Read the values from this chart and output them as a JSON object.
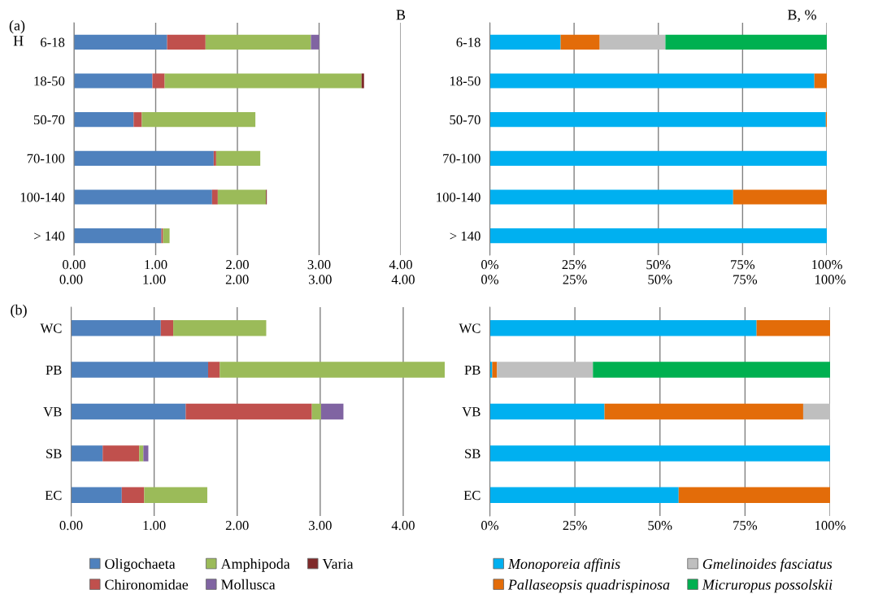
{
  "chart_data": [
    {
      "type": "bar",
      "orientation": "horizontal",
      "stacked": true,
      "title": "(a)",
      "ylabel": "H",
      "xlabel": "B",
      "categories": [
        "6-18",
        "18-50",
        "50-70",
        "70-100",
        "100-140",
        "> 140"
      ],
      "series": [
        {
          "color": "#4f81bd",
          "values": [
            1.14,
            0.96,
            0.73,
            1.71,
            1.69,
            1.07
          ]
        },
        {
          "color": "#c0504d",
          "values": [
            0.47,
            0.15,
            0.1,
            0.03,
            0.07,
            0.02
          ]
        },
        {
          "color": "#9bbb59",
          "values": [
            1.29,
            2.41,
            1.39,
            0.54,
            0.59,
            0.08
          ]
        },
        {
          "color": "#8064a2",
          "values": [
            0.1,
            0,
            0,
            0,
            0,
            0
          ]
        },
        {
          "color": "#7f2a2a",
          "values": [
            0,
            0.03,
            0,
            0,
            0.01,
            0
          ]
        }
      ],
      "xlim": [
        0,
        4
      ],
      "xticks": [
        {
          "value": 0,
          "label": "0.00"
        },
        {
          "value": 1,
          "label": "1.00"
        },
        {
          "value": 2,
          "label": "2.00"
        },
        {
          "value": 3,
          "label": "3.00"
        },
        {
          "value": 4,
          "label": "4.00"
        }
      ],
      "grid": "x"
    },
    {
      "type": "bar",
      "orientation": "horizontal",
      "stacked": true,
      "xlabel": "B, %",
      "categories": [
        "6-18",
        "18-50",
        "50-70",
        "70-100",
        "100-140",
        "> 140"
      ],
      "series": [
        {
          "color": "#00b0f0",
          "values": [
            21.0,
            96.3,
            99.7,
            100,
            72.2,
            100
          ]
        },
        {
          "color": "#e36c09",
          "values": [
            11.6,
            3.7,
            0.3,
            0,
            27.8,
            0
          ]
        },
        {
          "color": "#bfbfbf",
          "values": [
            19.5,
            0,
            0,
            0,
            0,
            0
          ]
        },
        {
          "color": "#00b050",
          "values": [
            47.9,
            0,
            0,
            0,
            0,
            0
          ]
        }
      ],
      "xlim": [
        0,
        100
      ],
      "xticks": [
        {
          "value": 0,
          "label": "0%"
        },
        {
          "value": 25,
          "label": "25%"
        },
        {
          "value": 50,
          "label": "50%"
        },
        {
          "value": 75,
          "label": "75%"
        },
        {
          "value": 100,
          "label": "100%"
        }
      ],
      "grid": "x"
    },
    {
      "type": "bar",
      "orientation": "horizontal",
      "stacked": true,
      "title": "(b)",
      "categories": [
        "WC",
        "PB",
        "VB",
        "SB",
        "EC"
      ],
      "series": [
        {
          "name": "Oligochaeta",
          "color": "#4f81bd",
          "values": [
            1.08,
            1.65,
            1.38,
            0.38,
            0.61
          ]
        },
        {
          "name": "Chironomidae",
          "color": "#c0504d",
          "values": [
            0.15,
            0.14,
            1.52,
            0.44,
            0.27
          ]
        },
        {
          "name": "Amphipoda",
          "color": "#9bbb59",
          "values": [
            1.12,
            2.71,
            0.11,
            0.05,
            0.76
          ]
        },
        {
          "name": "Mollusca",
          "color": "#8064a2",
          "values": [
            0,
            0,
            0.27,
            0.06,
            0
          ]
        },
        {
          "name": "Varia",
          "color": "#7f2a2a",
          "values": [
            0,
            0,
            0,
            0,
            0
          ]
        }
      ],
      "xlim": [
        0,
        4.5
      ],
      "xticks": [
        {
          "value": 0,
          "label": "0.00"
        },
        {
          "value": 1,
          "label": "1.00"
        },
        {
          "value": 2,
          "label": "2.00"
        },
        {
          "value": 3,
          "label": "3.00"
        },
        {
          "value": 4,
          "label": "4.00"
        }
      ],
      "x2lim": [
        0,
        4.5
      ],
      "x2ticks": [
        {
          "value": 0,
          "label": "0.00"
        },
        {
          "value": 1,
          "label": "1.00"
        },
        {
          "value": 2,
          "label": "2.00"
        },
        {
          "value": 3,
          "label": "3.00"
        },
        {
          "value": 4,
          "label": "4.00"
        }
      ],
      "grid": "x",
      "legend": "bottom"
    },
    {
      "type": "bar",
      "orientation": "horizontal",
      "stacked": true,
      "categories": [
        "WC",
        "PB",
        "VB",
        "SB",
        "EC"
      ],
      "series": [
        {
          "name": "Monoporeia affinis",
          "color": "#00b0f0",
          "values": [
            78.4,
            0.7,
            33.7,
            100,
            55.5
          ]
        },
        {
          "name": "Pallaseopsis quadrispinosa",
          "color": "#e36c09",
          "values": [
            21.6,
            1.4,
            58.4,
            0,
            44.5
          ]
        },
        {
          "name": "Gmelinoides fasciatus",
          "color": "#bfbfbf",
          "values": [
            0,
            28.2,
            7.9,
            0,
            0
          ]
        },
        {
          "name": "Micruropus possolskii",
          "color": "#00b050",
          "values": [
            0,
            69.7,
            0,
            0,
            0
          ]
        }
      ],
      "xlim": [
        0,
        100
      ],
      "xticks": [
        {
          "value": 0,
          "label": "0%"
        },
        {
          "value": 25,
          "label": "25%"
        },
        {
          "value": 50,
          "label": "50%"
        },
        {
          "value": 75,
          "label": "75%"
        },
        {
          "value": 100,
          "label": "100%"
        }
      ],
      "x2lim": [
        0,
        100
      ],
      "x2ticks": [
        {
          "value": 0,
          "label": "0%"
        },
        {
          "value": 25,
          "label": "25%"
        },
        {
          "value": 50,
          "label": "50%"
        },
        {
          "value": 75,
          "label": "75%"
        },
        {
          "value": 100,
          "label": "100%"
        }
      ],
      "grid": "x",
      "legend": "bottom"
    }
  ]
}
